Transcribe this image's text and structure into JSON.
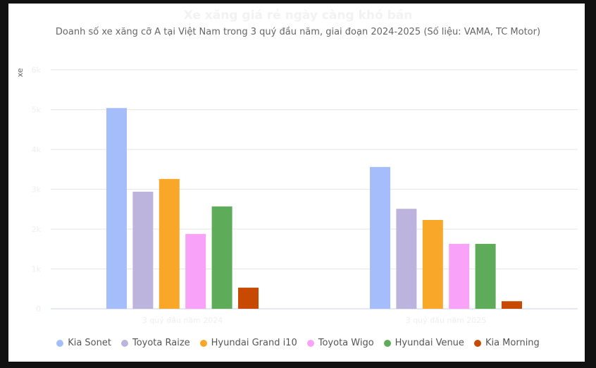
{
  "chart_data": {
    "type": "bar",
    "title": "Xe xăng giá rẻ ngày càng khó bán",
    "subtitle": "Doanh số xe xăng cỡ A tại Việt Nam trong 3 quý đầu năm, giai đoạn 2024-2025 (Số liệu: VAMA, TC Motor)",
    "ylabel": "xe",
    "ylim": [
      0,
      6000
    ],
    "yticks": [
      0,
      1000,
      2000,
      3000,
      4000,
      5000,
      6000
    ],
    "ytick_labels": [
      "0",
      "1k",
      "2k",
      "3k",
      "4k",
      "5k",
      "6k"
    ],
    "categories": [
      "3 quý đầu năm 2024",
      "3 quý đầu năm 2025"
    ],
    "grid": true,
    "legend_placement": "bottom",
    "series": [
      {
        "name": "Kia Sonet",
        "color": "#a6bdfc",
        "values": [
          5040,
          3560
        ]
      },
      {
        "name": "Toyota Raize",
        "color": "#bcb4dc",
        "values": [
          2940,
          2510
        ]
      },
      {
        "name": "Hyundai Grand i10",
        "color": "#f9a728",
        "values": [
          3260,
          2230
        ]
      },
      {
        "name": "Toyota Wigo",
        "color": "#f8a3f8",
        "values": [
          1880,
          1630
        ]
      },
      {
        "name": "Hyundai Venue",
        "color": "#5eab5a",
        "values": [
          2570,
          1630
        ]
      },
      {
        "name": "Kia Morning",
        "color": "#c84a00",
        "values": [
          530,
          190
        ]
      }
    ]
  }
}
